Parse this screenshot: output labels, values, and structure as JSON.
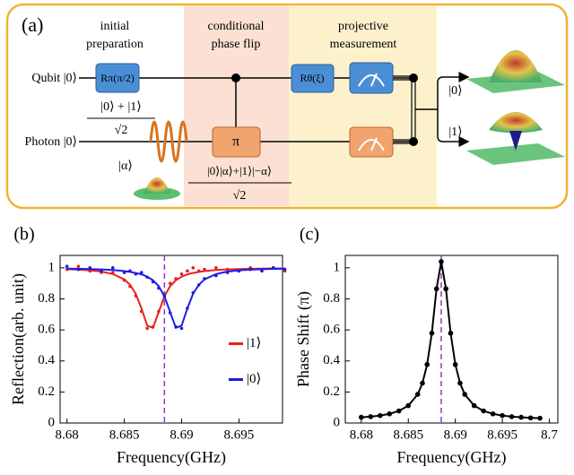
{
  "diagram": {
    "label": "(a)",
    "stages": [
      [
        "initial",
        "preparation"
      ],
      [
        "conditional",
        "phase flip"
      ],
      [
        "projective",
        "measurement"
      ]
    ],
    "inputs": [
      "Qubit |0⟩",
      "Photon |0⟩"
    ],
    "gates": [
      "Rπ(π/2)",
      "π",
      "Rθ(ξ)"
    ],
    "superposition": {
      "numerator": "|0⟩ + |1⟩",
      "denominator": "√2"
    },
    "coherent_state": "|α⟩",
    "entangled": {
      "numerator": "|0⟩|α⟩+|1⟩|−α⟩",
      "denominator": "√2"
    },
    "outputs": [
      "|0⟩",
      "|1⟩"
    ]
  },
  "chart_data": [
    {
      "type": "line",
      "label": "(b)",
      "xlabel": "Frequency(GHz)",
      "ylabel": "Reflection(arb. unit)",
      "x": [
        8.68,
        8.681,
        8.682,
        8.683,
        8.684,
        8.685,
        8.6855,
        8.686,
        8.6865,
        8.687,
        8.6875,
        8.688,
        8.6885,
        8.689,
        8.6895,
        8.69,
        8.6905,
        8.691,
        8.6915,
        8.692,
        8.693,
        8.694,
        8.695,
        8.696,
        8.697,
        8.698,
        8.699
      ],
      "series": [
        {
          "name": "|1⟩",
          "color": "#e8201c",
          "values": [
            0.991,
            0.988,
            0.984,
            0.976,
            0.96,
            0.926,
            0.891,
            0.833,
            0.738,
            0.628,
            0.613,
            0.715,
            0.817,
            0.882,
            0.92,
            0.943,
            0.958,
            0.967,
            0.974,
            0.979,
            0.986,
            0.99,
            0.992,
            0.994,
            0.995,
            0.996,
            0.996
          ],
          "points": [
            0.99,
            1.01,
            0.98,
            0.97,
            0.97,
            0.92,
            0.88,
            0.82,
            0.72,
            0.61,
            0.62,
            0.72,
            0.83,
            0.9,
            0.93,
            0.96,
            0.98,
            1.0,
            0.98,
            0.99,
            1.0,
            0.99,
            0.98,
            1.0,
            0.99,
            1.0,
            0.98
          ]
        },
        {
          "name": "|0⟩",
          "color": "#1c1ce8",
          "values": [
            0.995,
            0.994,
            0.992,
            0.99,
            0.986,
            0.979,
            0.974,
            0.967,
            0.958,
            0.943,
            0.92,
            0.882,
            0.817,
            0.715,
            0.613,
            0.628,
            0.738,
            0.833,
            0.891,
            0.926,
            0.96,
            0.976,
            0.984,
            0.988,
            0.991,
            0.993,
            0.994
          ],
          "points": [
            1.01,
            0.99,
            1.0,
            0.98,
            1.0,
            0.97,
            0.98,
            0.96,
            0.97,
            0.94,
            0.91,
            0.87,
            0.82,
            0.71,
            0.62,
            0.61,
            0.74,
            0.84,
            0.89,
            0.93,
            0.95,
            0.97,
            0.98,
            0.99,
            0.98,
            1.0,
            0.99
          ]
        }
      ],
      "xlim": [
        8.6794,
        8.6988
      ],
      "ylim": [
        0,
        1.08
      ],
      "xticks": [
        8.68,
        8.685,
        8.69,
        8.695
      ],
      "yticks": [
        0,
        0.2,
        0.4,
        0.6,
        0.8,
        1
      ],
      "vline": 8.6885,
      "vline_color": "#9b30c8",
      "legend": "right"
    },
    {
      "type": "line",
      "label": "(c)",
      "xlabel": "Frequency(GHz)",
      "ylabel": "Phase Shift (π)",
      "x": [
        8.68,
        8.681,
        8.682,
        8.683,
        8.684,
        8.685,
        8.686,
        8.6865,
        8.687,
        8.6875,
        8.688,
        8.6885,
        8.689,
        8.6895,
        8.69,
        8.6905,
        8.691,
        8.692,
        8.693,
        8.694,
        8.695,
        8.696,
        8.697,
        8.698,
        8.699
      ],
      "series": [
        {
          "color": "#000000",
          "markers": true,
          "values": [
            0.037,
            0.041,
            0.048,
            0.059,
            0.078,
            0.112,
            0.185,
            0.257,
            0.377,
            0.579,
            0.865,
            1.04,
            0.865,
            0.579,
            0.377,
            0.257,
            0.185,
            0.112,
            0.078,
            0.059,
            0.048,
            0.041,
            0.037,
            0.033,
            0.031
          ]
        }
      ],
      "xlim": [
        8.6783,
        8.7009
      ],
      "ylim": [
        0,
        1.08
      ],
      "xticks": [
        8.68,
        8.685,
        8.69,
        8.695,
        8.7
      ],
      "yticks": [
        0,
        0.2,
        0.4,
        0.6,
        0.8,
        1
      ],
      "vline": 8.6885,
      "vline_color": "#9b30c8"
    }
  ]
}
